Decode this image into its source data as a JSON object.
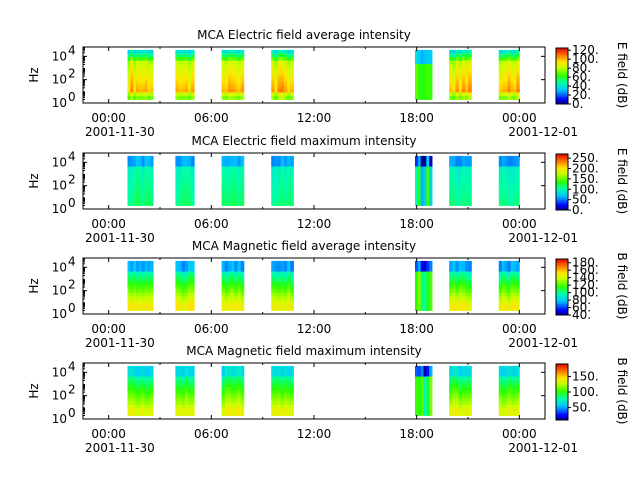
{
  "chart_data": [
    {
      "type": "heatmap",
      "title": "MCA  Electric field average intensity",
      "ylabel": "Hz",
      "colorbar_label": "E field (dB)",
      "colorbar_range": [
        0,
        125
      ],
      "colorbar_ticks": [
        "0.",
        "20.",
        "40.",
        "60.",
        "80.",
        "100.",
        "120."
      ],
      "colorbar_tick_values": [
        0,
        20,
        40,
        60,
        80,
        100,
        120
      ],
      "yticks": [
        {
          "base": "10",
          "exp": "0",
          "value": 0
        },
        {
          "base": "10",
          "exp": "2",
          "value": 2
        },
        {
          "base": "10",
          "exp": "4",
          "value": 4
        }
      ],
      "ylim_log10": [
        0,
        4.8
      ],
      "profile": "eavg"
    },
    {
      "type": "heatmap",
      "title": "MCA  Electric field maximum intensity",
      "ylabel": "Hz",
      "colorbar_label": "E field (dB)",
      "colorbar_range": [
        0,
        270
      ],
      "colorbar_ticks": [
        "0.",
        "50.",
        "100.",
        "150.",
        "200.",
        "250."
      ],
      "colorbar_tick_values": [
        0,
        50,
        100,
        150,
        200,
        250
      ],
      "yticks": [
        {
          "base": "10",
          "exp": "0",
          "value": 0
        },
        {
          "base": "10",
          "exp": "2",
          "value": 2
        },
        {
          "base": "10",
          "exp": "4",
          "value": 4
        }
      ],
      "ylim_log10": [
        0,
        4.8
      ],
      "profile": "emax"
    },
    {
      "type": "heatmap",
      "title": "MCA  Magnetic field average intensity",
      "ylabel": "Hz",
      "colorbar_label": "B field (dB)",
      "colorbar_range": [
        40,
        190
      ],
      "colorbar_ticks": [
        "40.",
        "60.",
        "80.",
        "100.",
        "120.",
        "140.",
        "160.",
        "180."
      ],
      "colorbar_tick_values": [
        40,
        60,
        80,
        100,
        120,
        140,
        160,
        180
      ],
      "yticks": [
        {
          "base": "10",
          "exp": "0",
          "value": 0
        },
        {
          "base": "10",
          "exp": "2",
          "value": 2
        },
        {
          "base": "10",
          "exp": "4",
          "value": 4
        }
      ],
      "ylim_log10": [
        0,
        4.8
      ],
      "profile": "bavg"
    },
    {
      "type": "heatmap",
      "title": "MCA  Magnetic field maximum intensity",
      "ylabel": "Hz",
      "colorbar_label": "B field (dB)",
      "colorbar_range": [
        10,
        190
      ],
      "colorbar_ticks": [
        "50.",
        "100.",
        "150."
      ],
      "colorbar_tick_values": [
        50,
        100,
        150
      ],
      "yticks": [
        {
          "base": "10",
          "exp": "0",
          "value": 0
        },
        {
          "base": "10",
          "exp": "2",
          "value": 2
        },
        {
          "base": "10",
          "exp": "4",
          "value": 4
        }
      ],
      "ylim_log10": [
        0,
        4.8
      ],
      "profile": "bmax"
    }
  ],
  "x_axis": {
    "range_hours": [
      -1.5,
      25.5
    ],
    "ticks": [
      {
        "hour": 0,
        "label": "00:00"
      },
      {
        "hour": 6,
        "label": "06:00"
      },
      {
        "hour": 12,
        "label": "12:00"
      },
      {
        "hour": 18,
        "label": "18:00"
      },
      {
        "hour": 24,
        "label": "00:00"
      }
    ],
    "minor_tick_hours": [
      3,
      9,
      15,
      21
    ],
    "date_left": "2001-11-30",
    "date_right": "2001-12-01"
  },
  "data_intervals_hours": [
    [
      1.1,
      2.6
    ],
    [
      3.9,
      5.0
    ],
    [
      6.6,
      7.9
    ],
    [
      9.5,
      10.8
    ],
    [
      17.9,
      18.9
    ],
    [
      19.9,
      21.2
    ],
    [
      22.8,
      24.0
    ]
  ]
}
